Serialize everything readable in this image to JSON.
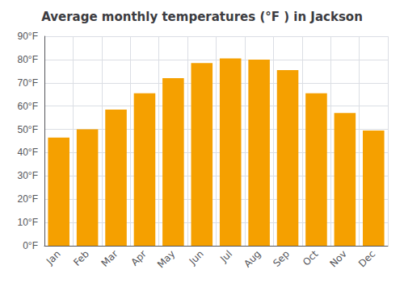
{
  "chart_data": {
    "type": "bar",
    "title": "Average monthly temperatures (°F ) in Jackson",
    "categories": [
      "Jan",
      "Feb",
      "Mar",
      "Apr",
      "May",
      "Jun",
      "Jul",
      "Aug",
      "Sep",
      "Oct",
      "Nov",
      "Dec"
    ],
    "values": [
      46.5,
      50,
      58.5,
      65.5,
      72,
      78.5,
      80.5,
      80,
      75.5,
      65.5,
      57,
      49.5
    ],
    "color": "#F5A000",
    "ylim": [
      0,
      90
    ],
    "yticks": [
      {
        "value": 0,
        "label": "0°F"
      },
      {
        "value": 10,
        "label": "10°F"
      },
      {
        "value": 20,
        "label": "20°F"
      },
      {
        "value": 30,
        "label": "30°F"
      },
      {
        "value": 40,
        "label": "40°F"
      },
      {
        "value": 50,
        "label": "50°F"
      },
      {
        "value": 60,
        "label": "60°F"
      },
      {
        "value": 70,
        "label": "70°F"
      },
      {
        "value": 80,
        "label": "80°F"
      },
      {
        "value": 90,
        "label": "90°F"
      }
    ],
    "grid": true
  }
}
